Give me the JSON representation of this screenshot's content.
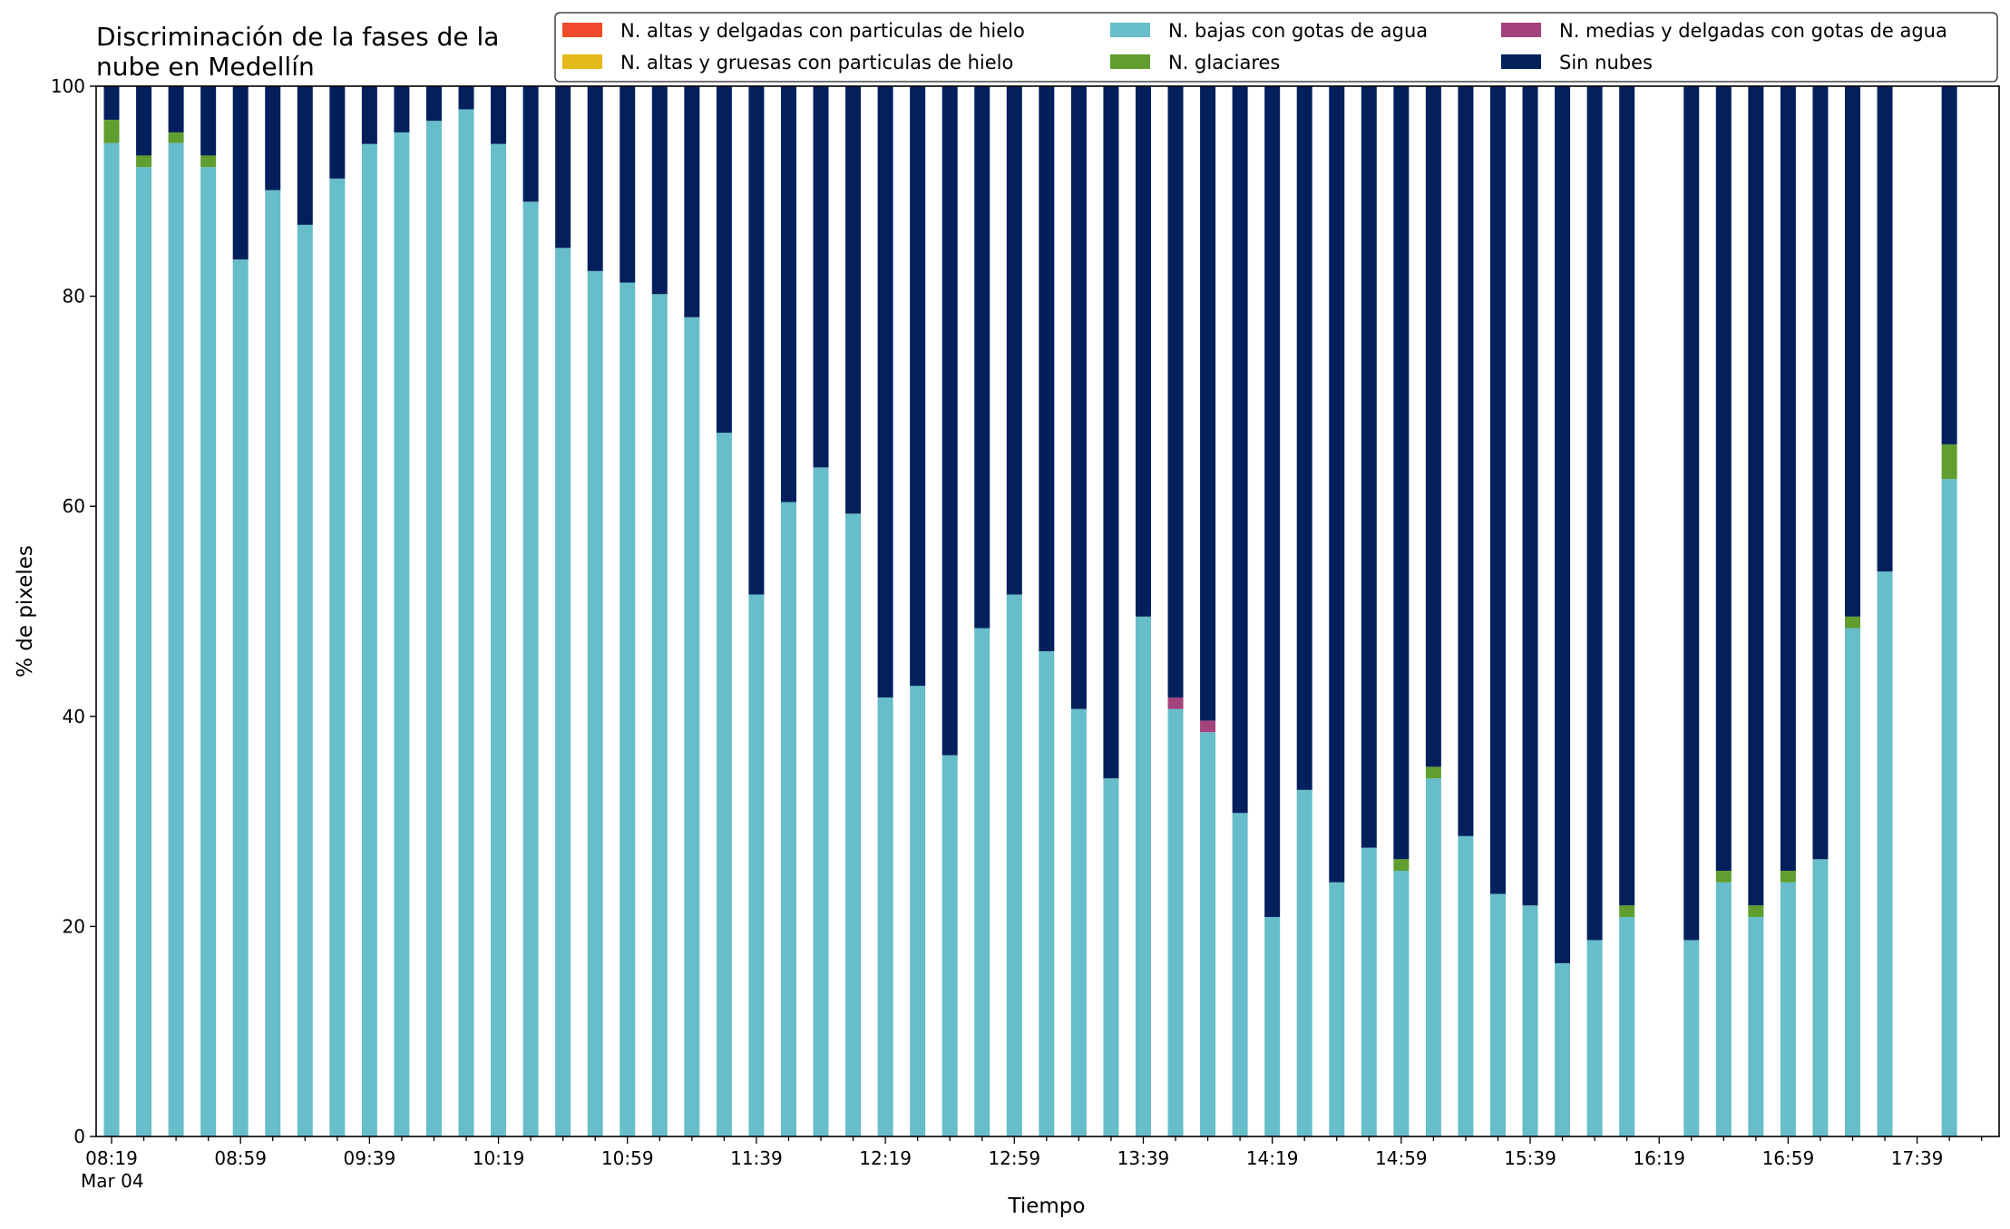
{
  "chart_data": {
    "type": "bar",
    "stacked": true,
    "title": [
      "Discriminación de la fases de la",
      "nube en Medellín"
    ],
    "xlabel": "Tiempo",
    "ylabel": "% de pixeles",
    "ylim": [
      0,
      100
    ],
    "yticks": [
      0,
      20,
      40,
      60,
      80,
      100
    ],
    "xaxis": {
      "unit": "minutes",
      "start": "08:19",
      "end": "17:59",
      "step": 10,
      "major_ticks": [
        "08:19",
        "08:59",
        "09:39",
        "10:19",
        "10:59",
        "11:39",
        "12:19",
        "12:59",
        "13:39",
        "14:19",
        "14:59",
        "15:39",
        "16:19",
        "16:59",
        "17:39"
      ],
      "first_tick_sublabel": "Mar 04"
    },
    "legend": {
      "placement": "top-right",
      "columns": 3
    },
    "series": [
      {
        "name": "N. altas y delgadas con particulas de hielo",
        "color": "#f14a2c"
      },
      {
        "name": "N. altas y gruesas con particulas de hielo",
        "color": "#e5b81a"
      },
      {
        "name": "N. bajas con gotas de agua",
        "color": "#67bdc9"
      },
      {
        "name": "N. glaciares",
        "color": "#5f9e2f"
      },
      {
        "name": "N. medias y delgadas con gotas de agua",
        "color": "#a4427b"
      },
      {
        "name": "Sin nubes",
        "color": "#03205d"
      }
    ],
    "stack_order": [
      "N. bajas con gotas de agua",
      "N. glaciares",
      "N. medias y delgadas con gotas de agua",
      "Sin nubes"
    ],
    "bars": [
      {
        "time": "08:19",
        "bajas": 94.6,
        "glaciares": 2.2,
        "medias": 0,
        "sin_nubes": 3.2
      },
      {
        "time": "08:29",
        "bajas": 92.3,
        "glaciares": 1.1,
        "medias": 0,
        "sin_nubes": 6.6
      },
      {
        "time": "08:39",
        "bajas": 94.6,
        "glaciares": 1.0,
        "medias": 0,
        "sin_nubes": 4.4
      },
      {
        "time": "08:49",
        "bajas": 92.3,
        "glaciares": 1.1,
        "medias": 0,
        "sin_nubes": 6.6
      },
      {
        "time": "08:59",
        "bajas": 83.5,
        "glaciares": 0,
        "medias": 0,
        "sin_nubes": 16.5
      },
      {
        "time": "09:09",
        "bajas": 90.1,
        "glaciares": 0,
        "medias": 0,
        "sin_nubes": 9.9
      },
      {
        "time": "09:19",
        "bajas": 86.8,
        "glaciares": 0,
        "medias": 0,
        "sin_nubes": 13.2
      },
      {
        "time": "09:29",
        "bajas": 91.2,
        "glaciares": 0,
        "medias": 0,
        "sin_nubes": 8.8
      },
      {
        "time": "09:39",
        "bajas": 94.5,
        "glaciares": 0,
        "medias": 0,
        "sin_nubes": 5.5
      },
      {
        "time": "09:49",
        "bajas": 95.6,
        "glaciares": 0,
        "medias": 0,
        "sin_nubes": 4.4
      },
      {
        "time": "09:59",
        "bajas": 96.7,
        "glaciares": 0,
        "medias": 0,
        "sin_nubes": 3.3
      },
      {
        "time": "10:09",
        "bajas": 97.8,
        "glaciares": 0,
        "medias": 0,
        "sin_nubes": 2.2
      },
      {
        "time": "10:19",
        "bajas": 94.5,
        "glaciares": 0,
        "medias": 0,
        "sin_nubes": 5.5
      },
      {
        "time": "10:29",
        "bajas": 89.0,
        "glaciares": 0,
        "medias": 0,
        "sin_nubes": 11.0
      },
      {
        "time": "10:39",
        "bajas": 84.6,
        "glaciares": 0,
        "medias": 0,
        "sin_nubes": 15.4
      },
      {
        "time": "10:49",
        "bajas": 82.4,
        "glaciares": 0,
        "medias": 0,
        "sin_nubes": 17.6
      },
      {
        "time": "10:59",
        "bajas": 81.3,
        "glaciares": 0,
        "medias": 0,
        "sin_nubes": 18.7
      },
      {
        "time": "11:09",
        "bajas": 80.2,
        "glaciares": 0,
        "medias": 0,
        "sin_nubes": 19.8
      },
      {
        "time": "11:19",
        "bajas": 78.0,
        "glaciares": 0,
        "medias": 0,
        "sin_nubes": 22.0
      },
      {
        "time": "11:29",
        "bajas": 67.0,
        "glaciares": 0,
        "medias": 0,
        "sin_nubes": 33.0
      },
      {
        "time": "11:39",
        "bajas": 51.6,
        "glaciares": 0,
        "medias": 0,
        "sin_nubes": 48.4
      },
      {
        "time": "11:49",
        "bajas": 60.4,
        "glaciares": 0,
        "medias": 0,
        "sin_nubes": 39.6
      },
      {
        "time": "11:59",
        "bajas": 63.7,
        "glaciares": 0,
        "medias": 0,
        "sin_nubes": 36.3
      },
      {
        "time": "12:09",
        "bajas": 59.3,
        "glaciares": 0,
        "medias": 0,
        "sin_nubes": 40.7
      },
      {
        "time": "12:19",
        "bajas": 41.8,
        "glaciares": 0,
        "medias": 0,
        "sin_nubes": 58.2
      },
      {
        "time": "12:29",
        "bajas": 42.9,
        "glaciares": 0,
        "medias": 0,
        "sin_nubes": 57.1
      },
      {
        "time": "12:39",
        "bajas": 36.3,
        "glaciares": 0,
        "medias": 0,
        "sin_nubes": 63.7
      },
      {
        "time": "12:49",
        "bajas": 48.4,
        "glaciares": 0,
        "medias": 0,
        "sin_nubes": 51.6
      },
      {
        "time": "12:59",
        "bajas": 51.6,
        "glaciares": 0,
        "medias": 0,
        "sin_nubes": 48.4
      },
      {
        "time": "13:09",
        "bajas": 46.2,
        "glaciares": 0,
        "medias": 0,
        "sin_nubes": 53.8
      },
      {
        "time": "13:19",
        "bajas": 40.7,
        "glaciares": 0,
        "medias": 0,
        "sin_nubes": 59.3
      },
      {
        "time": "13:29",
        "bajas": 34.1,
        "glaciares": 0,
        "medias": 0,
        "sin_nubes": 65.9
      },
      {
        "time": "13:39",
        "bajas": 49.5,
        "glaciares": 0,
        "medias": 0,
        "sin_nubes": 50.5
      },
      {
        "time": "13:49",
        "bajas": 40.7,
        "glaciares": 0,
        "medias": 1.1,
        "sin_nubes": 58.2
      },
      {
        "time": "13:59",
        "bajas": 38.5,
        "glaciares": 0,
        "medias": 1.1,
        "sin_nubes": 60.4
      },
      {
        "time": "14:09",
        "bajas": 30.8,
        "glaciares": 0,
        "medias": 0,
        "sin_nubes": 69.2
      },
      {
        "time": "14:19",
        "bajas": 20.9,
        "glaciares": 0,
        "medias": 0,
        "sin_nubes": 79.1
      },
      {
        "time": "14:29",
        "bajas": 33.0,
        "glaciares": 0,
        "medias": 0,
        "sin_nubes": 67.0
      },
      {
        "time": "14:39",
        "bajas": 24.2,
        "glaciares": 0,
        "medias": 0,
        "sin_nubes": 75.8
      },
      {
        "time": "14:49",
        "bajas": 27.5,
        "glaciares": 0,
        "medias": 0,
        "sin_nubes": 72.5
      },
      {
        "time": "14:59",
        "bajas": 25.3,
        "glaciares": 1.1,
        "medias": 0,
        "sin_nubes": 73.6
      },
      {
        "time": "15:09",
        "bajas": 34.1,
        "glaciares": 1.1,
        "medias": 0,
        "sin_nubes": 64.8
      },
      {
        "time": "15:19",
        "bajas": 28.6,
        "glaciares": 0,
        "medias": 0,
        "sin_nubes": 71.4
      },
      {
        "time": "15:29",
        "bajas": 23.1,
        "glaciares": 0,
        "medias": 0,
        "sin_nubes": 76.9
      },
      {
        "time": "15:39",
        "bajas": 22.0,
        "glaciares": 0,
        "medias": 0,
        "sin_nubes": 78.0
      },
      {
        "time": "15:49",
        "bajas": 16.5,
        "glaciares": 0,
        "medias": 0,
        "sin_nubes": 83.5
      },
      {
        "time": "15:59",
        "bajas": 18.7,
        "glaciares": 0,
        "medias": 0,
        "sin_nubes": 81.3
      },
      {
        "time": "16:09",
        "bajas": 20.9,
        "glaciares": 1.1,
        "medias": 0,
        "sin_nubes": 78.0
      },
      {
        "time": "16:29",
        "bajas": 18.7,
        "glaciares": 0,
        "medias": 0,
        "sin_nubes": 81.3
      },
      {
        "time": "16:39",
        "bajas": 24.2,
        "glaciares": 1.1,
        "medias": 0,
        "sin_nubes": 74.7
      },
      {
        "time": "16:49",
        "bajas": 20.9,
        "glaciares": 1.1,
        "medias": 0,
        "sin_nubes": 78.0
      },
      {
        "time": "16:59",
        "bajas": 24.2,
        "glaciares": 1.1,
        "medias": 0,
        "sin_nubes": 74.7
      },
      {
        "time": "17:09",
        "bajas": 26.4,
        "glaciares": 0,
        "medias": 0,
        "sin_nubes": 73.6
      },
      {
        "time": "17:19",
        "bajas": 48.4,
        "glaciares": 1.1,
        "medias": 0,
        "sin_nubes": 50.5
      },
      {
        "time": "17:29",
        "bajas": 53.8,
        "glaciares": 0,
        "medias": 0,
        "sin_nubes": 46.2
      },
      {
        "time": "17:49",
        "bajas": 62.6,
        "glaciares": 3.3,
        "medias": 0,
        "sin_nubes": 34.1
      }
    ]
  }
}
